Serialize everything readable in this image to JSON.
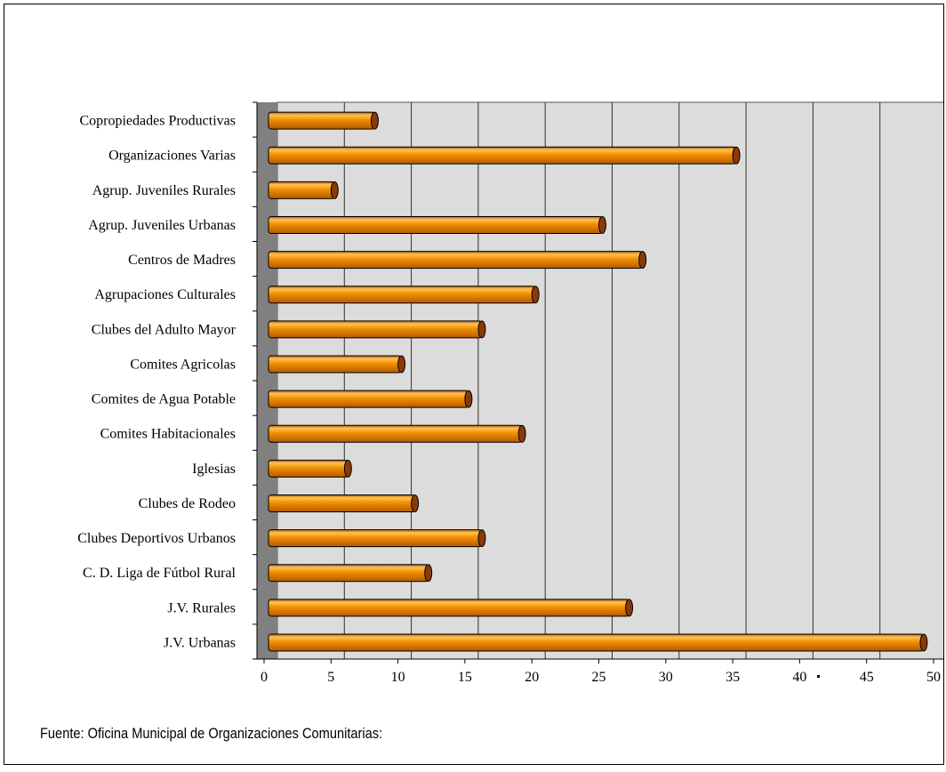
{
  "chart_data": {
    "type": "bar",
    "orientation": "horizontal",
    "style": "3d-cylinder",
    "categories": [
      "Copropiedades Productivas",
      "Organizaciones Varias",
      "Agrup. Juveniles Rurales",
      "Agrup. Juveniles Urbanas",
      "Centros de Madres",
      "Agrupaciones Culturales",
      "Clubes del Adulto Mayor",
      "Comites Agricolas",
      "Comites de Agua Potable",
      "Comites Habitacionales",
      "Iglesias",
      "Clubes de Rodeo",
      "Clubes Deportivos Urbanos",
      "C. D. Liga de Fútbol Rural",
      "J.V. Rurales",
      "J.V. Urbanas"
    ],
    "values": [
      8,
      35,
      5,
      25,
      28,
      20,
      16,
      10,
      15,
      19,
      6,
      11,
      16,
      12,
      27,
      49
    ],
    "xlim": [
      0,
      50
    ],
    "xticks": [
      "0",
      "5",
      "10",
      "15",
      "20",
      "25",
      "30",
      "35",
      "40",
      "45",
      "50"
    ],
    "grid": "vertical",
    "colors": {
      "bar": "#f29100",
      "bar_light": "#ffc25a",
      "bar_dark": "#b35a00",
      "bar_cap": "#8a3a08",
      "plot_bg": "#dcdcdc",
      "wall": "#808080",
      "grid": "#333333"
    }
  },
  "source": "Fuente: Oficina Municipal de Organizaciones Comunitarias:"
}
